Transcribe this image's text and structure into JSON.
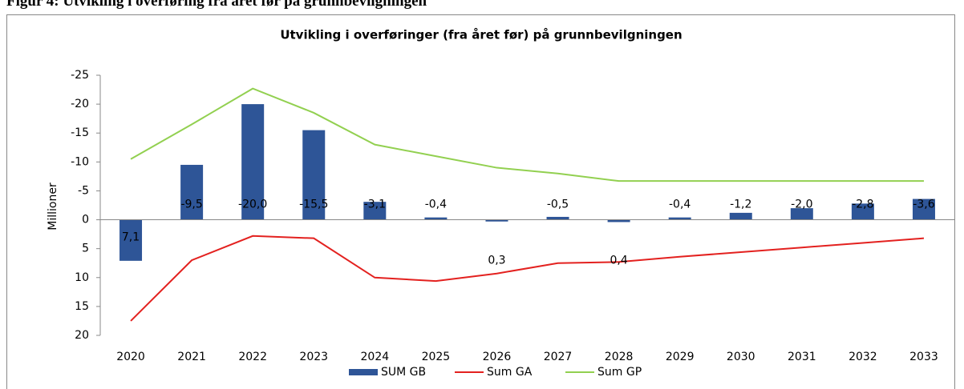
{
  "caption": "Figur 4: Utvikling i overføring fra året før på grunnbevilgningen",
  "chart_data": {
    "type": "bar",
    "title": "Utvikling i overføringer (fra året før) på grunnbevilgningen",
    "y_label": "Millioner",
    "categories": [
      "2020",
      "2021",
      "2022",
      "2023",
      "2024",
      "2025",
      "2026",
      "2027",
      "2028",
      "2029",
      "2030",
      "2031",
      "2032",
      "2033"
    ],
    "series": [
      {
        "name": "SUM GB",
        "type": "bar",
        "color": "#2e5597",
        "values": [
          7.1,
          -9.5,
          -20.0,
          -15.5,
          -3.1,
          -0.4,
          0.3,
          -0.5,
          0.4,
          -0.4,
          -1.2,
          -2.0,
          -2.8,
          -3.6
        ],
        "value_labels": [
          "7,1",
          "-9,5",
          "-20,0",
          "-15,5",
          "-3,1",
          "-0,4",
          "0,3",
          "-0,5",
          "0,4",
          "-0,4",
          "-1,2",
          "-2,0",
          "-2,8",
          "-3,6"
        ]
      },
      {
        "name": "Sum GA",
        "type": "line",
        "color": "#e3211f",
        "values": [
          17.5,
          7,
          2.8,
          3.2,
          10,
          10.6,
          9.3,
          7.5,
          7.3,
          6.4,
          5.6,
          4.8,
          4,
          3.2
        ]
      },
      {
        "name": "Sum GP",
        "type": "line",
        "color": "#92d050",
        "values": [
          -10.5,
          -16.5,
          -22.7,
          -18.5,
          -13,
          -11,
          -9,
          -8,
          -6.7,
          -6.7,
          -6.7,
          -6.7,
          -6.7,
          -6.7
        ]
      }
    ],
    "ylim": [
      -25,
      20
    ],
    "yticks": [
      -25,
      -20,
      -15,
      -10,
      -5,
      0,
      5,
      10,
      15,
      20
    ],
    "inverted": true,
    "legend": "bottom"
  }
}
